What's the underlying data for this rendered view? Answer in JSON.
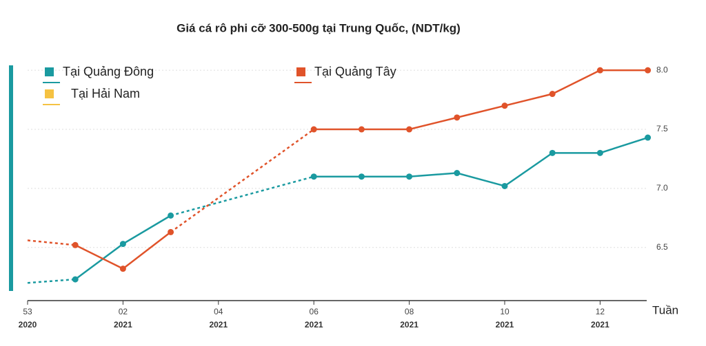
{
  "chart_data": {
    "type": "line",
    "title": "Giá cá rô phi cỡ 300-500g tại Trung Quốc, (NDT/kg)",
    "x_label": "Tuần",
    "categories": [
      "53",
      null,
      "02",
      null,
      "04",
      null,
      "06",
      null,
      "08",
      null,
      "10",
      null,
      "12",
      null
    ],
    "category_years": [
      "2020",
      null,
      "2021",
      null,
      "2021",
      null,
      "2021",
      null,
      "2021",
      null,
      "2021",
      null,
      "2021",
      null
    ],
    "series": [
      {
        "name": "Tại Quảng Đông",
        "color": "#1a9aa0",
        "values": [
          6.2,
          6.23,
          6.53,
          6.77,
          null,
          null,
          7.1,
          7.1,
          7.1,
          7.13,
          7.02,
          7.3,
          7.3,
          7.43
        ]
      },
      {
        "name": "Tại Quảng Tây",
        "color": "#e0532a",
        "values": [
          6.56,
          6.52,
          6.32,
          6.63,
          null,
          null,
          7.5,
          7.5,
          7.5,
          7.6,
          7.7,
          7.8,
          8.0,
          8.0
        ]
      },
      {
        "name": "Tại Hải Nam",
        "color": "#f5c242",
        "values": [
          null,
          null,
          null,
          null,
          null,
          null,
          null,
          null,
          null,
          null,
          null,
          null,
          null,
          null
        ]
      }
    ],
    "dashed_segments": [
      [
        0,
        1
      ],
      [
        3,
        6
      ]
    ],
    "ylim": [
      6.05,
      8.1
    ],
    "yticks": [
      {
        "value": 6.5,
        "label": "6.5"
      },
      {
        "value": 7,
        "label": "7.0"
      },
      {
        "value": 7.5,
        "label": "7.5"
      },
      {
        "value": 8,
        "label": "8.0"
      }
    ],
    "grid": true
  }
}
